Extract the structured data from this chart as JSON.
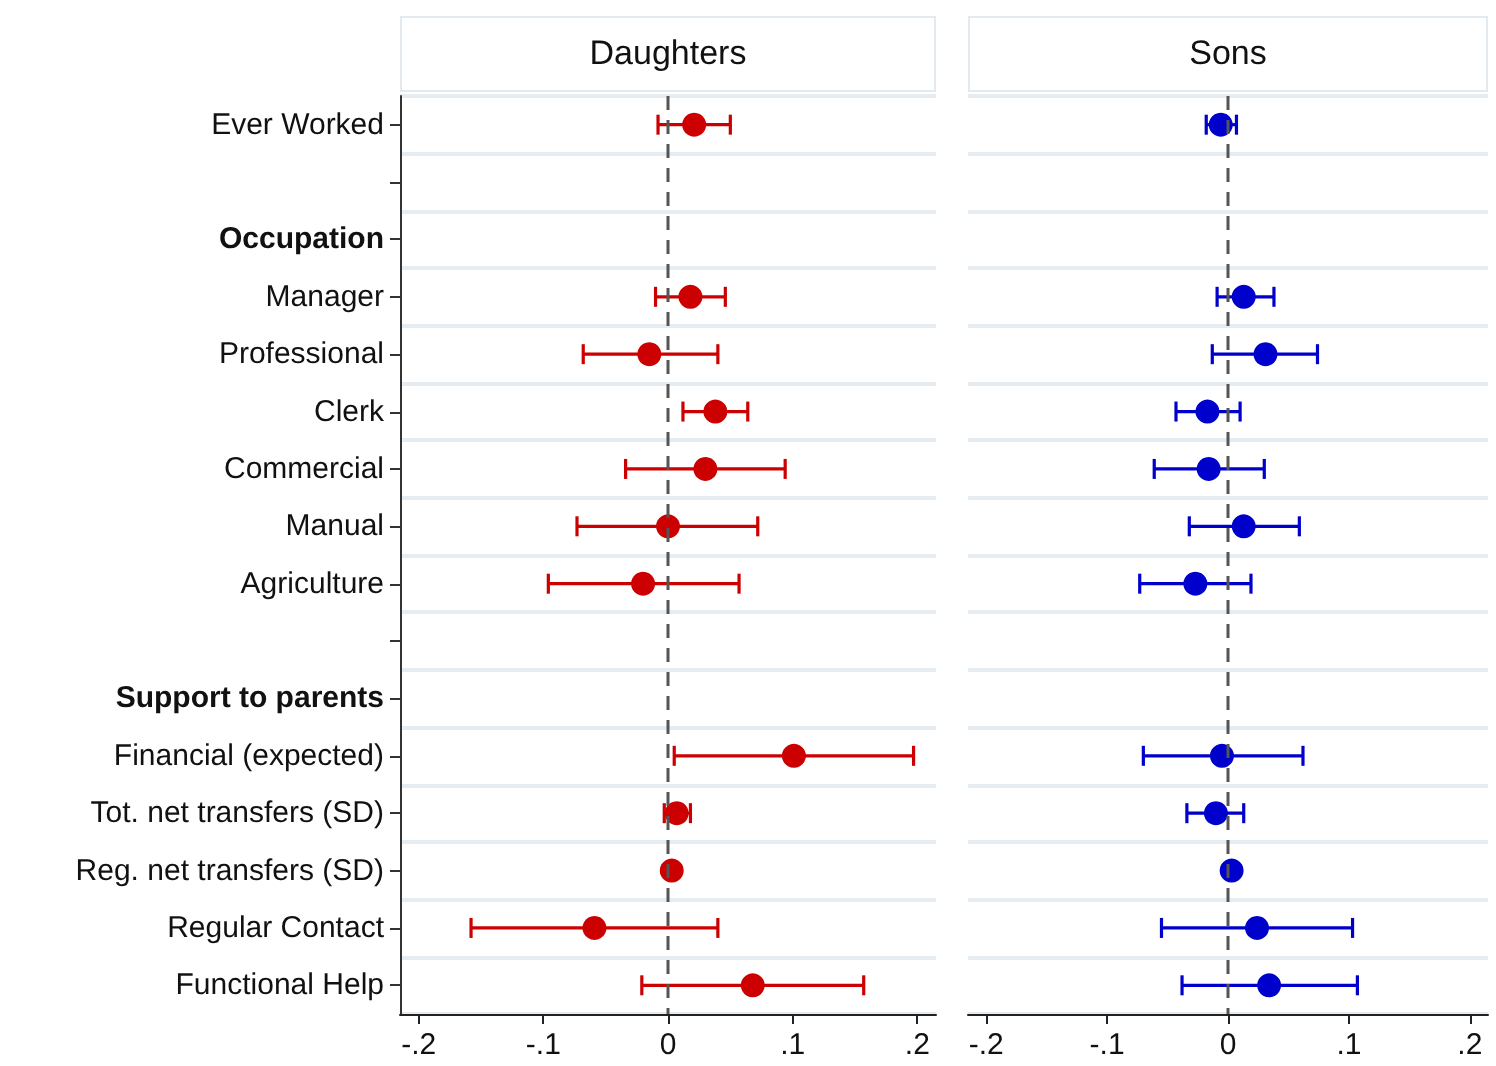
{
  "chart_data": [
    {
      "type": "scatter",
      "title": "Daughters",
      "orientation": "horizontal",
      "marker": "circle",
      "grid": "y",
      "categories": [
        "Ever Worked",
        null,
        "Occupation",
        "Manager",
        "Professional",
        "Clerk",
        "Commercial",
        "Manual",
        "Agriculture",
        null,
        "Support to parents",
        "Financial (expected)",
        "Tot. net transfers (SD)",
        "Reg. net transfers (SD)",
        "Regular Contact",
        "Functional Help"
      ],
      "series": [
        {
          "color": "#cc0000",
          "values": [
            0.021,
            null,
            null,
            0.018,
            -0.015,
            0.038,
            0.03,
            0.0,
            -0.02,
            null,
            null,
            0.101,
            0.007,
            0.003,
            -0.059,
            0.068
          ],
          "errors": [
            [
              -0.008,
              0.05
            ],
            null,
            null,
            [
              -0.01,
              0.046
            ],
            [
              -0.068,
              0.04
            ],
            [
              0.012,
              0.064
            ],
            [
              -0.034,
              0.094
            ],
            [
              -0.073,
              0.072
            ],
            [
              -0.096,
              0.057
            ],
            null,
            null,
            [
              0.005,
              0.197
            ],
            [
              -0.003,
              0.018
            ],
            null,
            [
              -0.158,
              0.04
            ],
            [
              -0.021,
              0.157
            ]
          ]
        }
      ],
      "xlim": [
        -0.215,
        0.215
      ],
      "xticks": [
        {
          "value": -0.2,
          "label": "-.2"
        },
        {
          "value": -0.1,
          "label": "-.1"
        },
        {
          "value": 0,
          "label": "0"
        },
        {
          "value": 0.1,
          "label": ".1"
        },
        {
          "value": 0.2,
          "label": ".2"
        }
      ],
      "ref_lines": [
        {
          "axis": "x",
          "value": 0,
          "line_style": "dashed",
          "color": "#555555"
        }
      ]
    },
    {
      "type": "scatter",
      "title": "Sons",
      "orientation": "horizontal",
      "marker": "circle",
      "grid": "y",
      "tick_labels": "x",
      "series": [
        {
          "color": "#0000cc",
          "values": [
            -0.006,
            null,
            null,
            0.013,
            0.031,
            -0.017,
            -0.016,
            0.013,
            -0.027,
            null,
            null,
            -0.005,
            -0.01,
            0.003,
            0.024,
            0.034
          ],
          "errors": [
            [
              -0.018,
              0.007
            ],
            null,
            null,
            [
              -0.009,
              0.038
            ],
            [
              -0.013,
              0.074
            ],
            [
              -0.043,
              0.01
            ],
            [
              -0.061,
              0.03
            ],
            [
              -0.032,
              0.059
            ],
            [
              -0.073,
              0.019
            ],
            null,
            null,
            [
              -0.07,
              0.062
            ],
            [
              -0.034,
              0.013
            ],
            null,
            [
              -0.055,
              0.103
            ],
            [
              -0.038,
              0.107
            ]
          ]
        }
      ],
      "xlim": [
        -0.215,
        0.215
      ],
      "xticks": [
        {
          "value": -0.2,
          "label": "-.2"
        },
        {
          "value": -0.1,
          "label": "-.1"
        },
        {
          "value": 0,
          "label": "0"
        },
        {
          "value": 0.1,
          "label": ".1"
        },
        {
          "value": 0.2,
          "label": ".2"
        }
      ],
      "ref_lines": [
        {
          "axis": "x",
          "value": 0,
          "line_style": "dashed",
          "color": "#555555"
        }
      ]
    }
  ]
}
